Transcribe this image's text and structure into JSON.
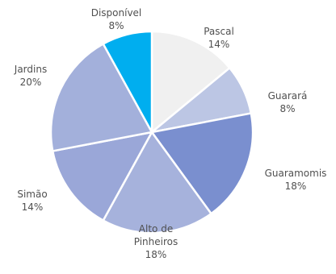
{
  "chart_data": {
    "type": "pie",
    "start_angle_deg": 0,
    "direction": "clockwise",
    "slice_border_color": "#ffffff",
    "slices": [
      {
        "lines": [
          "Pascal"
        ],
        "value_label": "14%",
        "value": 14,
        "color": "#f0f0f0"
      },
      {
        "lines": [
          "Guarará"
        ],
        "value_label": "8%",
        "value": 8,
        "color": "#bcc6e4"
      },
      {
        "lines": [
          "Guaramomis"
        ],
        "value_label": "18%",
        "value": 18,
        "color": "#7a8fcf"
      },
      {
        "lines": [
          "Alto de",
          "Pinheiros"
        ],
        "value_label": "18%",
        "value": 18,
        "color": "#a6b2dc"
      },
      {
        "lines": [
          "Simão"
        ],
        "value_label": "14%",
        "value": 14,
        "color": "#9aa7d8"
      },
      {
        "lines": [
          "Jardins"
        ],
        "value_label": "20%",
        "value": 20,
        "color": "#a3b0db"
      },
      {
        "lines": [
          "Disponível"
        ],
        "value_label": "8%",
        "value": 8,
        "color": "#00aeef"
      }
    ]
  }
}
